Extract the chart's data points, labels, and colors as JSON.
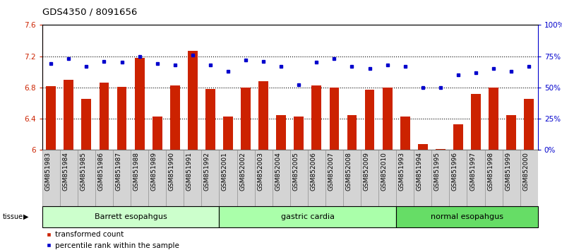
{
  "title": "GDS4350 / 8091656",
  "samples": [
    "GSM851983",
    "GSM851984",
    "GSM851985",
    "GSM851986",
    "GSM851987",
    "GSM851988",
    "GSM851989",
    "GSM851990",
    "GSM851991",
    "GSM851992",
    "GSM852001",
    "GSM852002",
    "GSM852003",
    "GSM852004",
    "GSM852005",
    "GSM852006",
    "GSM852007",
    "GSM852008",
    "GSM852009",
    "GSM852010",
    "GSM851993",
    "GSM851994",
    "GSM851995",
    "GSM851996",
    "GSM851997",
    "GSM851998",
    "GSM851999",
    "GSM852000"
  ],
  "bar_values": [
    6.82,
    6.9,
    6.65,
    6.86,
    6.81,
    7.18,
    6.43,
    6.83,
    7.27,
    6.78,
    6.43,
    6.8,
    6.88,
    6.45,
    6.43,
    6.83,
    6.8,
    6.45,
    6.77,
    6.8,
    6.43,
    6.08,
    6.01,
    6.33,
    6.72,
    6.8,
    6.45,
    6.65
  ],
  "dot_values": [
    69,
    73,
    67,
    71,
    70,
    75,
    69,
    68,
    76,
    68,
    63,
    72,
    71,
    67,
    52,
    70,
    73,
    67,
    65,
    68,
    67,
    50,
    50,
    60,
    62,
    65,
    63,
    67
  ],
  "groups": [
    {
      "label": "Barrett esopahgus",
      "start": 0,
      "end": 10
    },
    {
      "label": "gastric cardia",
      "start": 10,
      "end": 20
    },
    {
      "label": "normal esopahgus",
      "start": 20,
      "end": 28
    }
  ],
  "group_colors": [
    "#ccffcc",
    "#aaffaa",
    "#66dd66"
  ],
  "ylim_left": [
    6.0,
    7.6
  ],
  "ylim_right": [
    0,
    100
  ],
  "yticks_left": [
    6.0,
    6.4,
    6.8,
    7.2,
    7.6
  ],
  "ytick_labels_left": [
    "6",
    "6.4",
    "6.8",
    "7.2",
    "7.6"
  ],
  "yticks_right": [
    0,
    25,
    50,
    75,
    100
  ],
  "ytick_labels_right": [
    "0%",
    "25%",
    "50%",
    "75%",
    "100%"
  ],
  "bar_color": "#cc2200",
  "dot_color": "#0000cc",
  "bar_width": 0.55,
  "label_fontsize": 6.5,
  "title_fontsize": 9.5,
  "legend_fontsize": 7.5,
  "axis_fontsize": 7.5
}
